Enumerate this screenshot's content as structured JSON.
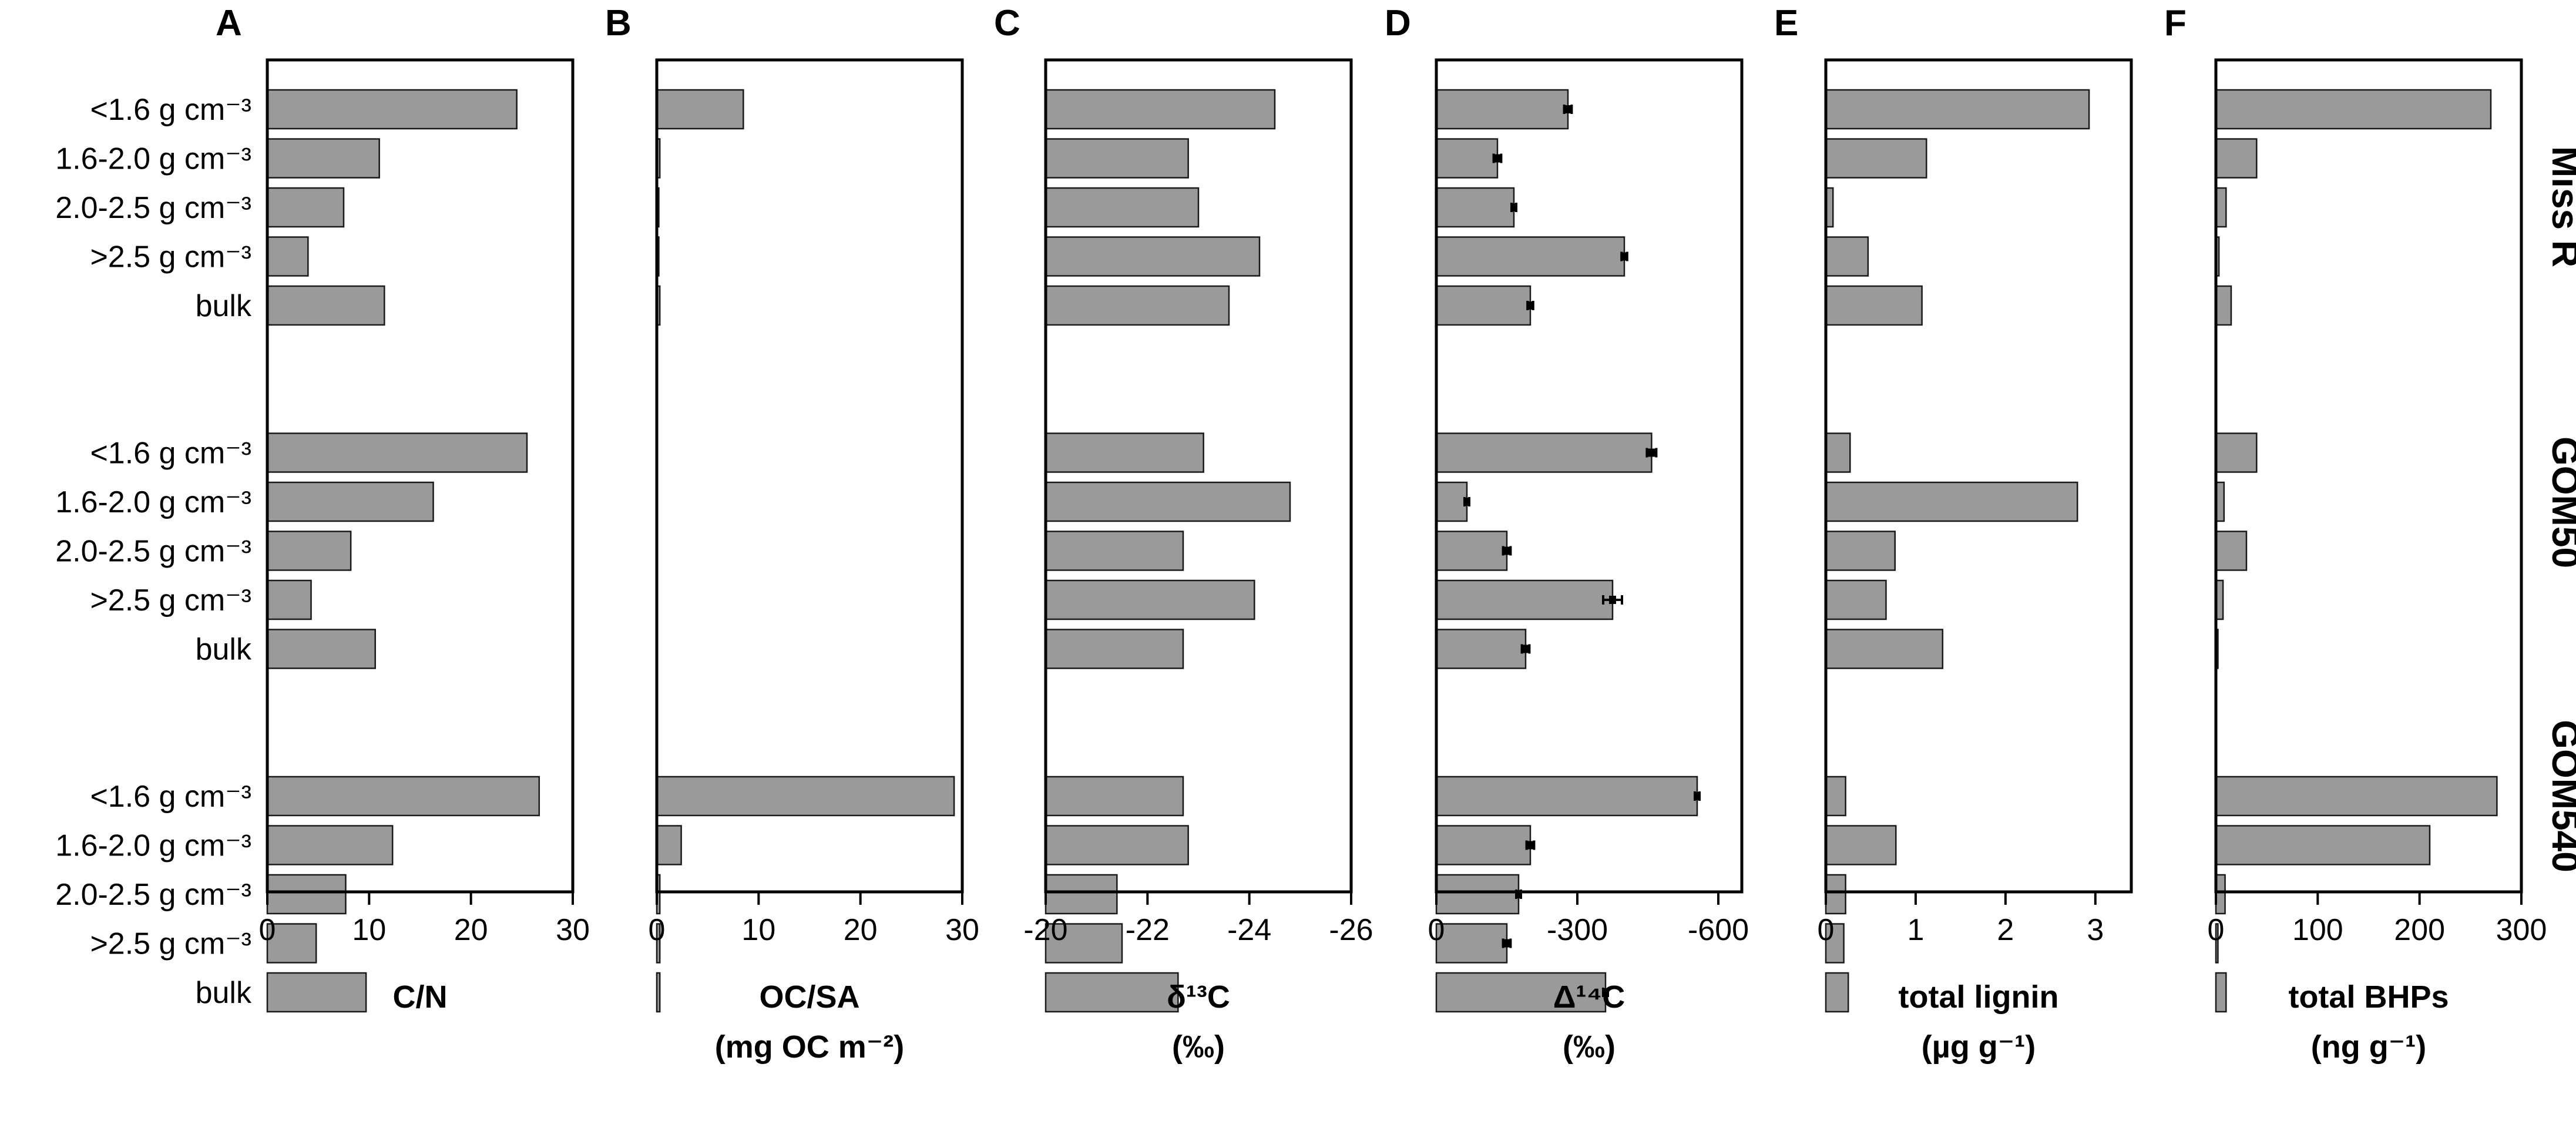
{
  "chart_data": {
    "type": "bar",
    "orientation": "horizontal",
    "categories": [
      "<1.6 g cm⁻³",
      "1.6-2.0 g cm⁻³",
      "2.0-2.5 g cm⁻³",
      ">2.5 g cm⁻³",
      "bulk"
    ],
    "groups": [
      "Miss R",
      "GOM50",
      "GOM540"
    ],
    "panels": [
      {
        "letter": "A",
        "xlabel": [
          "C/N"
        ],
        "xlim": [
          0,
          30
        ],
        "ticks": [
          0,
          10,
          20,
          30
        ],
        "tick_labels": [
          "0",
          "10",
          "20",
          "30"
        ],
        "values": [
          [
            24.5,
            11,
            7.5,
            4,
            11.5
          ],
          [
            25.5,
            16.3,
            8.2,
            4.3,
            10.6
          ],
          [
            26.7,
            12.3,
            7.7,
            4.8,
            9.7
          ]
        ]
      },
      {
        "letter": "B",
        "xlabel": [
          "OC/SA",
          "(mg OC m⁻²)"
        ],
        "xlim": [
          0,
          30
        ],
        "ticks": [
          0,
          10,
          20,
          30
        ],
        "tick_labels": [
          "0",
          "10",
          "20",
          "30"
        ],
        "values": [
          [
            8.5,
            0.3,
            0.2,
            0.2,
            0.3
          ],
          [
            0,
            0,
            0,
            0,
            0
          ],
          [
            29.2,
            2.4,
            0.3,
            0.3,
            0.3
          ]
        ]
      },
      {
        "letter": "C",
        "xlabel": [
          "δ¹³C",
          "(‰)"
        ],
        "xlim": [
          -20,
          -26
        ],
        "ticks": [
          -20,
          -22,
          -24,
          -26
        ],
        "tick_labels": [
          "-20",
          "-22",
          "-24",
          "-26"
        ],
        "values": [
          [
            -24.5,
            -22.8,
            -23.0,
            -24.2,
            -23.6
          ],
          [
            -23.1,
            -24.8,
            -22.7,
            -24.1,
            -22.7
          ],
          [
            -22.7,
            -22.8,
            -21.4,
            -21.5,
            -22.6
          ]
        ]
      },
      {
        "letter": "D",
        "xlabel": [
          "Δ¹⁴C",
          "(‰)"
        ],
        "xlim": [
          0,
          -650
        ],
        "ticks": [
          0,
          -300,
          -600
        ],
        "tick_labels": [
          "0",
          "-300",
          "-600"
        ],
        "values": [
          [
            -280,
            -130,
            -165,
            -400,
            -200
          ],
          [
            -458,
            -65,
            -150,
            -375,
            -190
          ],
          [
            -555,
            -200,
            -175,
            -150,
            -360
          ]
        ],
        "errors": [
          [
            8,
            8,
            5,
            6,
            6
          ],
          [
            10,
            5,
            8,
            20,
            8
          ],
          [
            5,
            8,
            5,
            8,
            5
          ]
        ]
      },
      {
        "letter": "E",
        "xlabel": [
          "total lignin",
          "(µg g⁻¹)"
        ],
        "xlim": [
          0,
          3.4
        ],
        "ticks": [
          0,
          1,
          2,
          3
        ],
        "tick_labels": [
          "0",
          "1",
          "2",
          "3"
        ],
        "values": [
          [
            2.93,
            1.12,
            0.08,
            0.47,
            1.07
          ],
          [
            0.27,
            2.8,
            0.77,
            0.67,
            1.3
          ],
          [
            0.22,
            0.78,
            0.22,
            0.2,
            0.25
          ]
        ]
      },
      {
        "letter": "F",
        "xlabel": [
          "total BHPs",
          "(ng g⁻¹)"
        ],
        "xlim": [
          0,
          300
        ],
        "ticks": [
          0,
          100,
          200,
          300
        ],
        "tick_labels": [
          "0",
          "100",
          "200",
          "300"
        ],
        "values": [
          [
            270,
            40,
            10,
            3,
            15
          ],
          [
            40,
            8,
            30,
            7,
            2
          ],
          [
            276,
            210,
            9,
            2,
            10
          ]
        ]
      }
    ]
  }
}
